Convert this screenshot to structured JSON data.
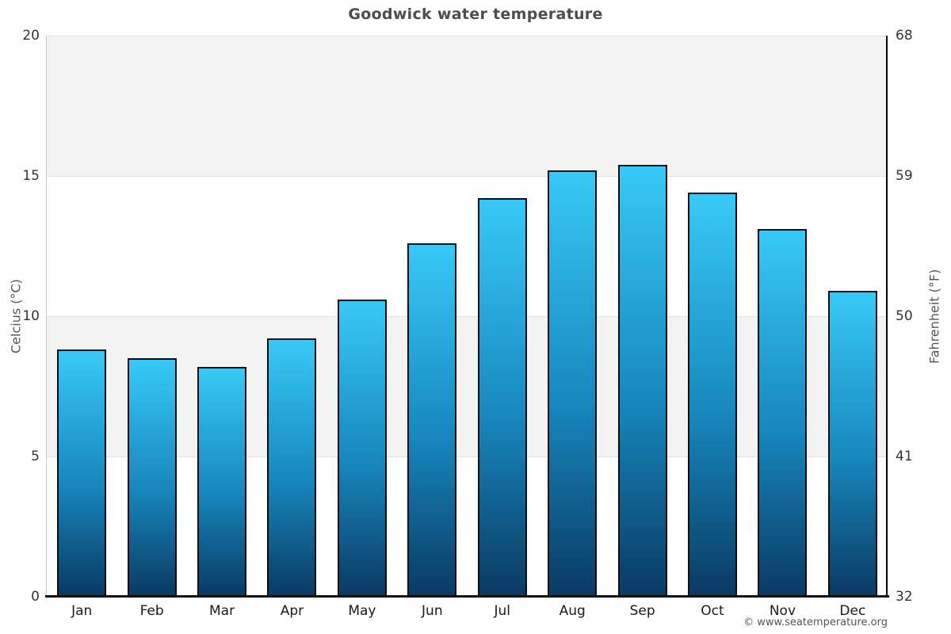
{
  "title": "Goodwick water temperature",
  "attribution": "© www.seatemperature.org",
  "y_axis_left": {
    "label": "Celcius (°C)"
  },
  "y_axis_right": {
    "label": "Fahrenheit (°F)"
  },
  "chart_data": {
    "type": "bar",
    "title": "Goodwick water temperature",
    "categories": [
      "Jan",
      "Feb",
      "Mar",
      "Apr",
      "May",
      "Jun",
      "Jul",
      "Aug",
      "Sep",
      "Oct",
      "Nov",
      "Dec"
    ],
    "values": [
      8.8,
      8.5,
      8.2,
      9.2,
      10.6,
      12.6,
      14.2,
      15.2,
      15.4,
      14.4,
      13.1,
      10.9
    ],
    "unit": "°C",
    "ylabel_left": "Celcius (°C)",
    "ylabel_right": "Fahrenheit (°F)",
    "yticks_celsius": [
      20,
      15,
      10,
      5,
      0
    ],
    "yticks_fahrenheit": [
      68,
      59,
      50,
      41,
      32
    ],
    "ylim": [
      0,
      20
    ],
    "grid": "alternating-horizontal-bands-every-5C",
    "legend": "none",
    "colors": {
      "bar_gradient_top": "#38c9f7",
      "bar_gradient_bottom": "#0a3a63",
      "bar_border": "#0d0d0d",
      "band_gray": "#f3f3f3",
      "band_white": "#ffffff",
      "gridline": "#e2e2e2",
      "axis_left_line": "#c9c9c9",
      "axis_right_line": "#000000",
      "axis_bottom_line": "#111111",
      "title_text": "#4d4d4d",
      "tick_text": "#333333",
      "axis_title_text": "#555555",
      "attribution_text": "#555555"
    }
  }
}
